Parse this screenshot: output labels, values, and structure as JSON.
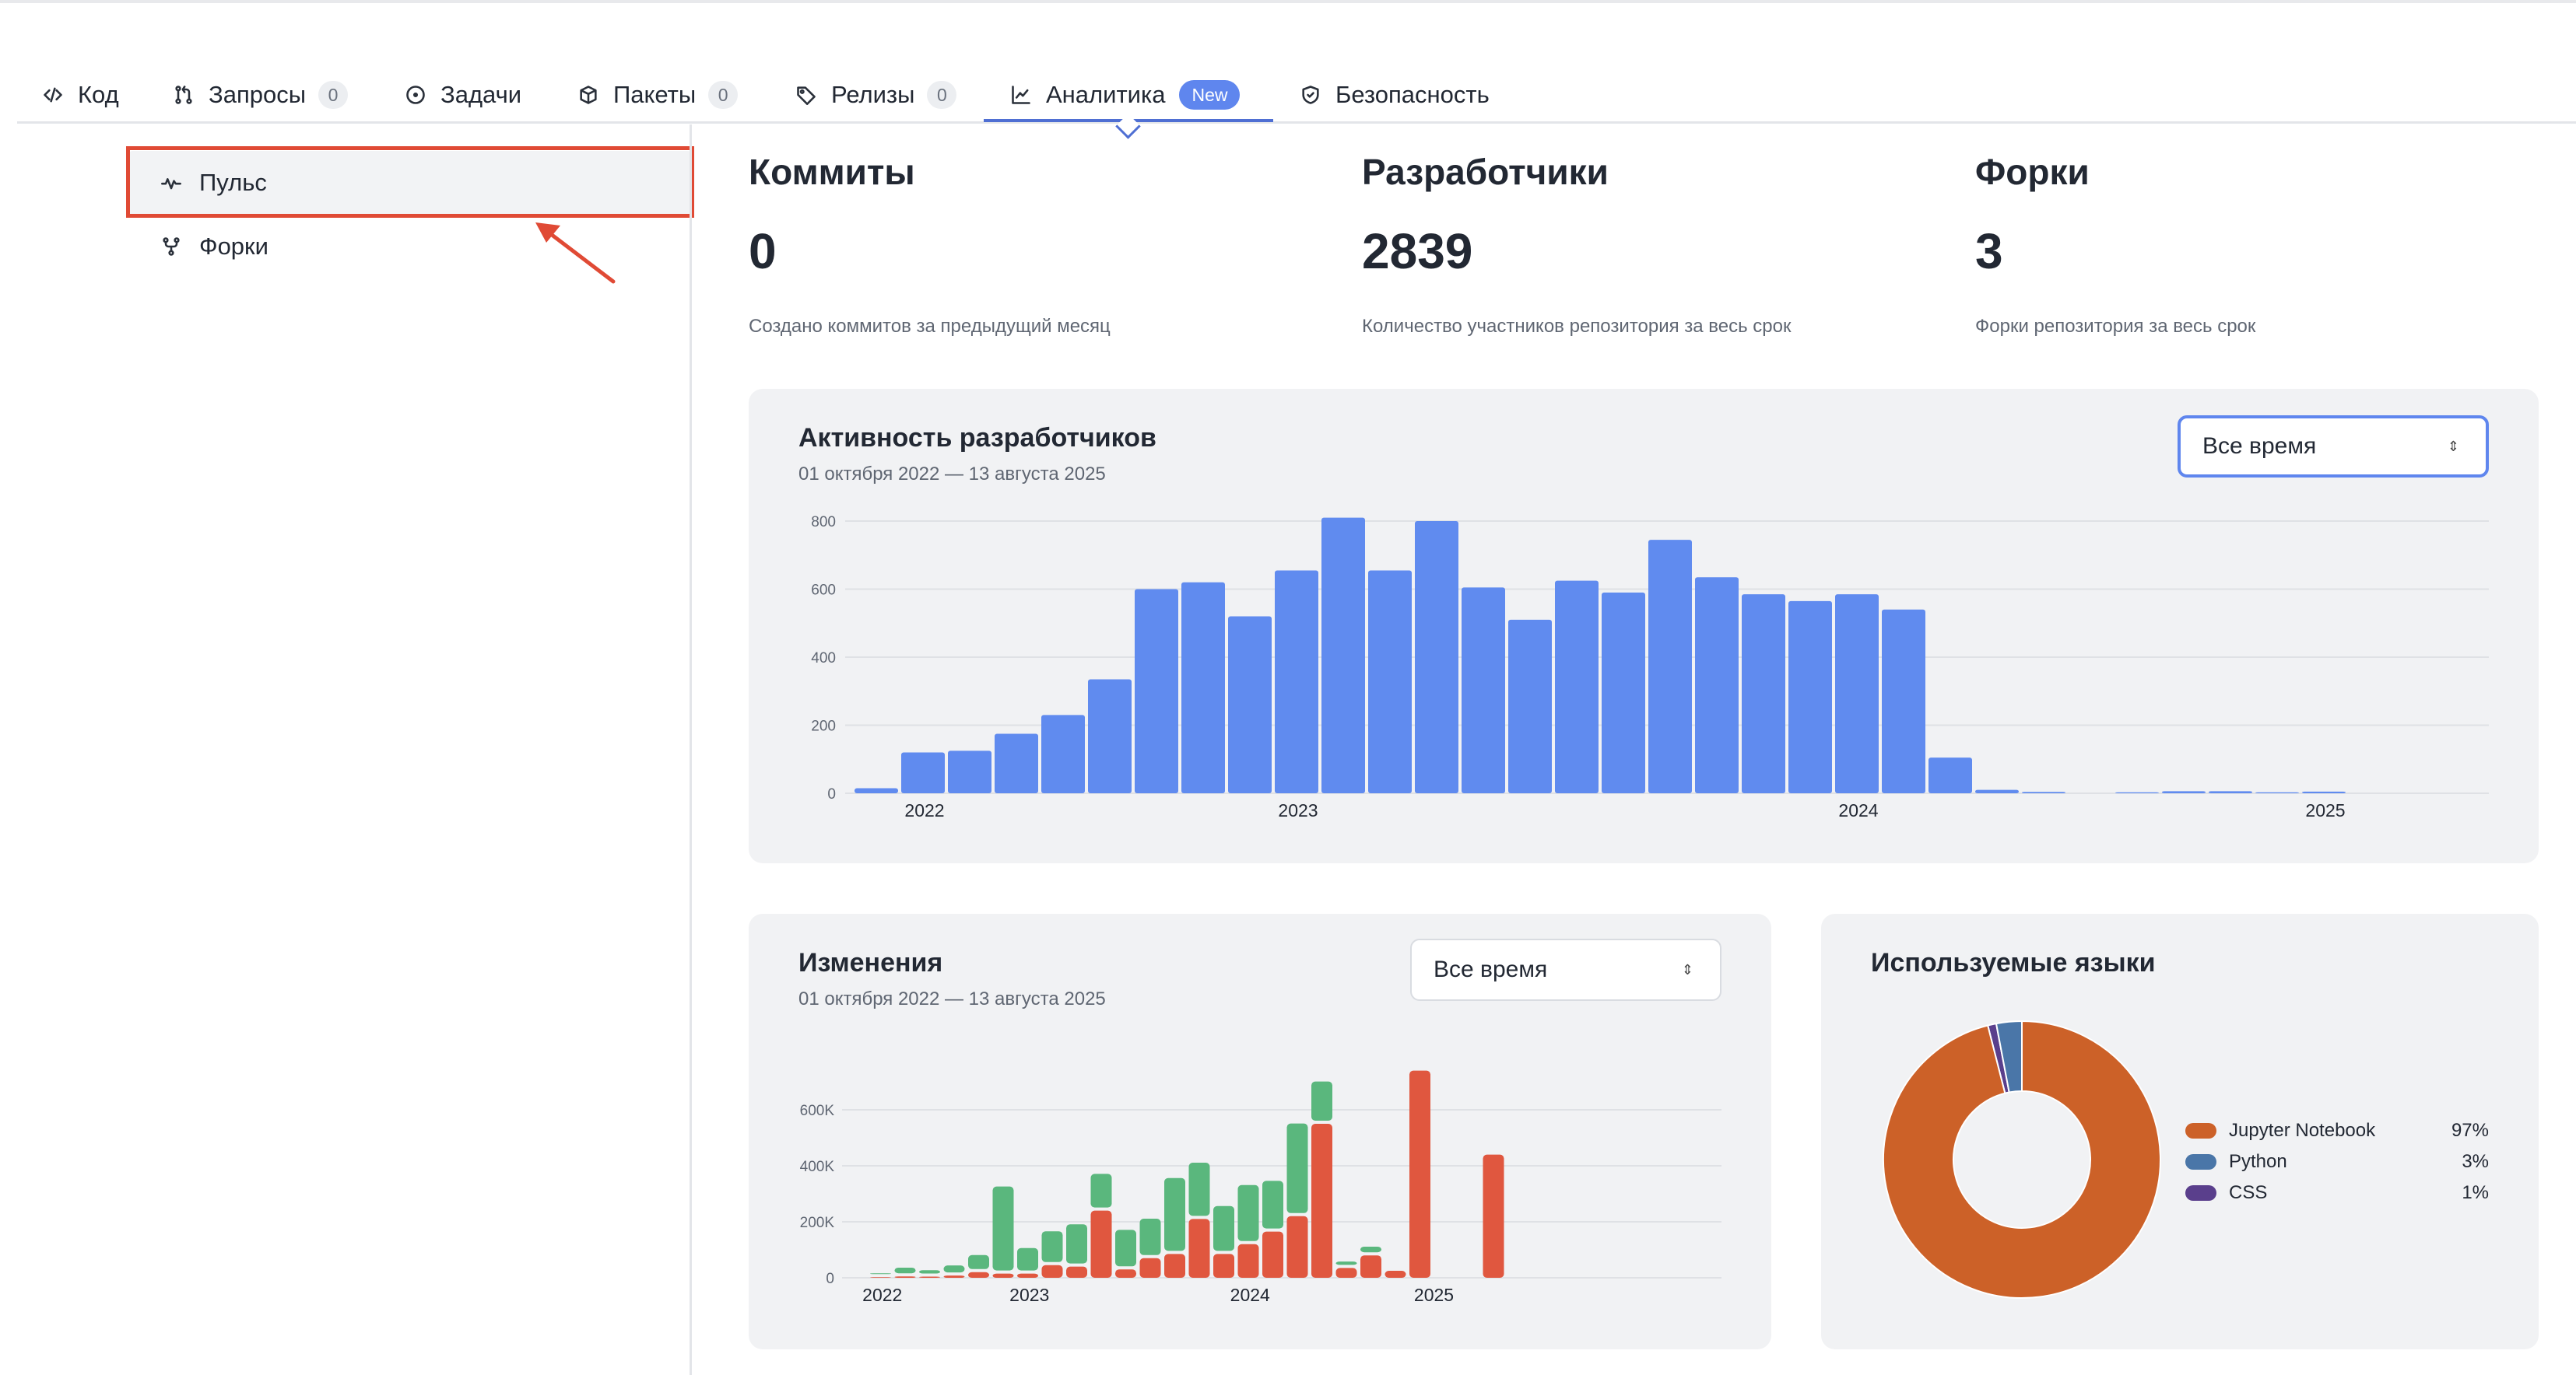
{
  "tabs": [
    {
      "label": "Код",
      "icon": "code-icon"
    },
    {
      "label": "Запросы",
      "icon": "pull-request-icon",
      "count": "0"
    },
    {
      "label": "Задачи",
      "icon": "issue-icon"
    },
    {
      "label": "Пакеты",
      "icon": "package-icon",
      "count": "0"
    },
    {
      "label": "Релизы",
      "icon": "tag-icon",
      "count": "0"
    },
    {
      "label": "Аналитика",
      "icon": "chart-icon",
      "badge": "New",
      "active": true
    },
    {
      "label": "Безопасность",
      "icon": "shield-icon"
    }
  ],
  "sidebar": {
    "items": [
      {
        "label": "Пульс",
        "icon": "pulse-icon",
        "selected": true
      },
      {
        "label": "Форки",
        "icon": "fork-icon"
      }
    ]
  },
  "stats": [
    {
      "title": "Коммиты",
      "value": "0",
      "desc": "Создано коммитов за предыдущий месяц"
    },
    {
      "title": "Разработчики",
      "value": "2839",
      "desc": "Количество участников репозитория за весь срок"
    },
    {
      "title": "Форки",
      "value": "3",
      "desc": "Форки репозитория за весь срок"
    }
  ],
  "activity": {
    "title": "Активность разработчиков",
    "subtitle": "01 октября 2022 — 13 августа 2025",
    "select": "Все время"
  },
  "changes": {
    "title": "Изменения",
    "subtitle": "01 октября 2022 — 13 августа 2025",
    "select": "Все время"
  },
  "languages": {
    "title": "Используемые языки"
  },
  "colors": {
    "accent": "#5f86ee",
    "bar_blue": "#608bef",
    "additions_green": "#5ab77d",
    "deletions_red": "#e0573f",
    "highlight_red": "#e04a35"
  },
  "chart_data": [
    {
      "type": "bar",
      "title": "Активность разработчиков",
      "ylim": [
        0,
        800
      ],
      "y_ticks": [
        "0",
        "200",
        "400",
        "600",
        "800"
      ],
      "x_ticks": [
        "2022",
        "2023",
        "2024",
        "2025"
      ],
      "x_tick_positions": [
        1.5,
        9.5,
        21.5,
        31.5
      ],
      "values": [
        15,
        120,
        125,
        175,
        230,
        335,
        600,
        620,
        520,
        655,
        810,
        655,
        800,
        605,
        510,
        625,
        590,
        745,
        635,
        585,
        565,
        585,
        540,
        105,
        10,
        4,
        0,
        3,
        6,
        6,
        3,
        5,
        0,
        0,
        0
      ]
    },
    {
      "type": "bar",
      "title": "Изменения",
      "ylim": [
        0,
        800000
      ],
      "y_ticks": [
        "0",
        "200K",
        "400K",
        "600K"
      ],
      "x_ticks": [
        "2022",
        "2023",
        "2024",
        "2025"
      ],
      "x_tick_positions": [
        0.5,
        6.5,
        15.5,
        23
      ],
      "series": [
        {
          "name": "additions",
          "values": [
            3000,
            20000,
            12000,
            25000,
            50000,
            300000,
            80000,
            110000,
            140000,
            120000,
            130000,
            130000,
            260000,
            190000,
            160000,
            200000,
            170000,
            320000,
            140000,
            12000,
            20000,
            0,
            0,
            0,
            0,
            0,
            0,
            0,
            0,
            0
          ]
        },
        {
          "name": "deletions",
          "values": [
            2000,
            5000,
            4000,
            8000,
            20000,
            15000,
            15000,
            45000,
            40000,
            240000,
            30000,
            70000,
            85000,
            210000,
            85000,
            120000,
            165000,
            220000,
            550000,
            35000,
            80000,
            25000,
            740000,
            0,
            0,
            440000,
            0,
            0,
            0,
            0
          ]
        }
      ]
    },
    {
      "type": "pie",
      "title": "Используемые языки",
      "labels": [
        "Jupyter Notebook",
        "Python",
        "CSS"
      ],
      "values": [
        97,
        3,
        1
      ],
      "display": [
        "97%",
        "3%",
        "1%"
      ],
      "colors": [
        "#cc6128",
        "#4a76a8",
        "#5a3f8c"
      ]
    }
  ]
}
